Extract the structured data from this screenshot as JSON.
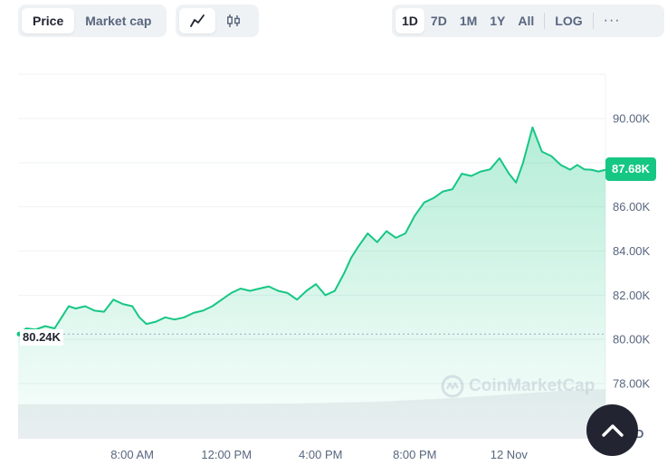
{
  "toolbar": {
    "price_label": "Price",
    "mcap_label": "Market cap",
    "line_icon": "line-chart-icon",
    "candle_icon": "candlestick-chart-icon",
    "ranges": [
      "1D",
      "7D",
      "1M",
      "1Y",
      "All"
    ],
    "log_label": "LOG",
    "more_label": "···",
    "active_range": "1D"
  },
  "current_price_label": "87.68K",
  "open_price_label": "80.24K",
  "currency_label": "USD",
  "watermark_text": "CoinMarketCap",
  "colors": {
    "accent_green": "#16c784",
    "button_dark": "#222531",
    "grid": "#eff2f5",
    "text_muted": "#58667e"
  },
  "chart_data": {
    "type": "area",
    "yticks": [
      "90.00K",
      "88.00K",
      "86.00K",
      "84.00K",
      "82.00K",
      "80.00K",
      "78.00K"
    ],
    "ytick_values": [
      90000,
      88000,
      86000,
      84000,
      82000,
      80000,
      78000
    ],
    "ylim": [
      76900,
      92050
    ],
    "xticks": [
      "8:00 AM",
      "12:00 PM",
      "4:00 PM",
      "8:00 PM",
      "12 Nov"
    ],
    "xtick_hours": [
      8,
      12,
      16,
      20,
      24
    ],
    "xlim_hours": [
      3.15,
      28.1
    ],
    "open_price": 80240,
    "current_price": 87680,
    "series": [
      {
        "x": [
          3.15,
          3.5,
          3.9,
          4.3,
          4.7,
          5.0,
          5.3,
          5.6,
          6.0,
          6.4,
          6.8,
          7.2,
          7.6,
          8.0,
          8.3,
          8.6,
          9.0,
          9.4,
          9.8,
          10.2,
          10.6,
          11.0,
          11.4,
          11.8,
          12.2,
          12.6,
          13.0,
          13.4,
          13.8,
          14.2,
          14.6,
          15.0,
          15.4,
          15.8,
          16.2,
          16.6,
          17.0,
          17.3,
          17.6,
          18.0,
          18.4,
          18.8,
          19.2,
          19.6,
          20.0,
          20.4,
          20.8,
          21.2,
          21.6,
          22.0,
          22.4,
          22.8,
          23.2,
          23.6,
          24.0,
          24.3,
          24.6,
          25.0,
          25.4,
          25.8,
          26.2,
          26.6,
          26.9,
          27.2,
          27.5,
          27.8,
          28.1
        ],
        "y": [
          80250,
          80500,
          80450,
          80600,
          80500,
          81000,
          81500,
          81400,
          81500,
          81300,
          81250,
          81800,
          81600,
          81500,
          81000,
          80700,
          80800,
          81000,
          80900,
          81000,
          81200,
          81300,
          81500,
          81800,
          82100,
          82300,
          82200,
          82300,
          82400,
          82200,
          82100,
          81800,
          82200,
          82500,
          82000,
          82200,
          83000,
          83700,
          84200,
          84800,
          84400,
          84900,
          84600,
          84800,
          85600,
          86200,
          86400,
          86700,
          86800,
          87500,
          87400,
          87600,
          87700,
          88200,
          87500,
          87100,
          88000,
          89600,
          88500,
          88300,
          87900,
          87680,
          87900,
          87700,
          87680,
          87600,
          87680
        ]
      }
    ],
    "volume_note": "background volume band"
  }
}
